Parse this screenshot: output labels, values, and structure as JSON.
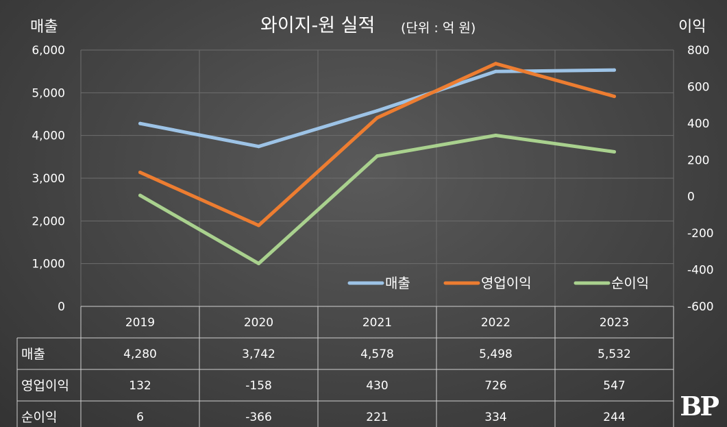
{
  "chart_data": {
    "type": "line",
    "title": "와이지-원 실적",
    "subtitle": "(단위 : 억 원)",
    "left_axis_title": "매출",
    "right_axis_title": "이익",
    "categories": [
      "2019",
      "2020",
      "2021",
      "2022",
      "2023"
    ],
    "left_axis": {
      "min": 0,
      "max": 6000,
      "ticks": [
        0,
        1000,
        2000,
        3000,
        4000,
        5000,
        6000
      ],
      "tick_labels": [
        "0",
        "1,000",
        "2,000",
        "3,000",
        "4,000",
        "5,000",
        "6,000"
      ]
    },
    "right_axis": {
      "min": -600,
      "max": 800,
      "ticks": [
        -600,
        -400,
        -200,
        0,
        200,
        400,
        600,
        800
      ],
      "tick_labels": [
        "-600",
        "-400",
        "-200",
        "0",
        "200",
        "400",
        "600",
        "800"
      ]
    },
    "series": [
      {
        "name": "매출",
        "axis": "left",
        "color": "#9dc3e6",
        "values": [
          4280,
          3742,
          4578,
          5498,
          5532
        ],
        "labels": [
          "4,280",
          "3,742",
          "4,578",
          "5,498",
          "5,532"
        ]
      },
      {
        "name": "영업이익",
        "axis": "right",
        "color": "#ed7d31",
        "values": [
          132,
          -158,
          430,
          726,
          547
        ],
        "labels": [
          "132",
          "-158",
          "430",
          "726",
          "547"
        ]
      },
      {
        "name": "순이익",
        "axis": "right",
        "color": "#a9d18e",
        "values": [
          6,
          -366,
          221,
          334,
          244
        ],
        "labels": [
          "6",
          "-366",
          "221",
          "334",
          "244"
        ]
      }
    ],
    "legend_position": "bottom-right",
    "grid": true
  },
  "logo_text": "BP"
}
